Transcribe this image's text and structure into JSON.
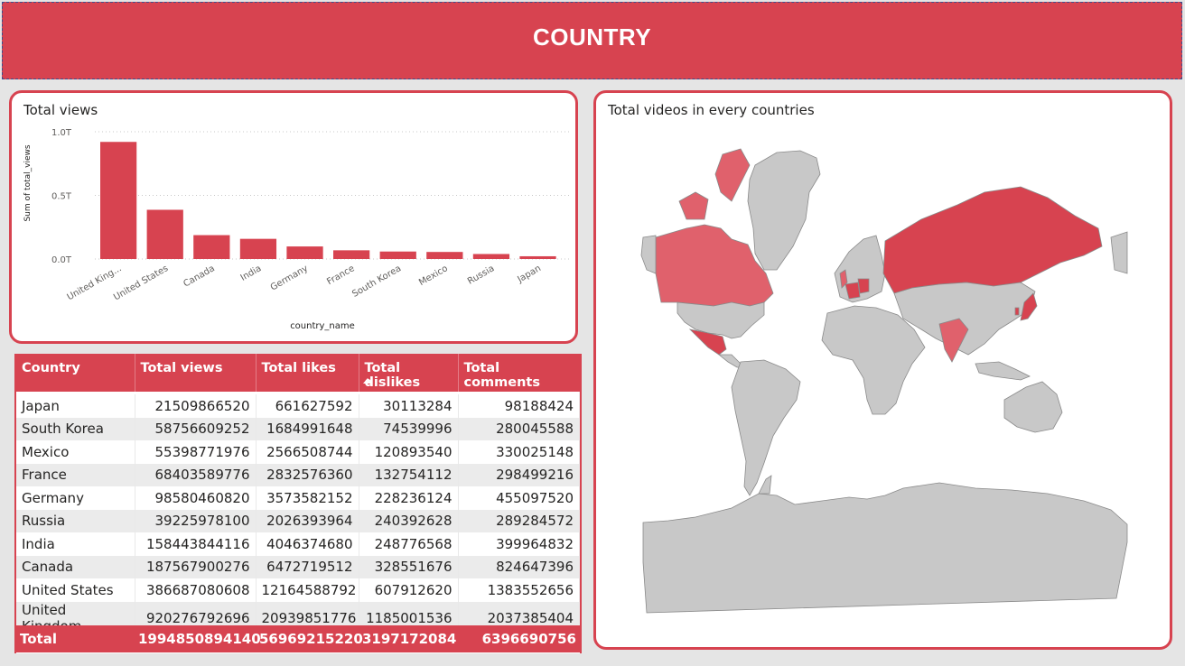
{
  "page": {
    "title": "COUNTRY"
  },
  "bar_chart": {
    "title": "Total views"
  },
  "map": {
    "title": "Total videos in every countries",
    "colors": {
      "land": "#c8c8c8",
      "border": "#8a8a8a",
      "highlight": "#d74350",
      "highlight_light": "#e0616c"
    }
  },
  "colors": {
    "accent": "#d74350",
    "background": "#e5e5e5"
  },
  "chart_data": {
    "type": "bar",
    "title": "Total views",
    "xlabel": "country_name",
    "ylabel": "Sum of total_views",
    "ylim": [
      0,
      1000000000000
    ],
    "yticks": [
      "0.0T",
      "0.5T",
      "1.0T"
    ],
    "grid": true,
    "categories": [
      "United King...",
      "United States",
      "Canada",
      "India",
      "Germany",
      "France",
      "South Korea",
      "Mexico",
      "Russia",
      "Japan"
    ],
    "values": [
      920276792696,
      386687080608,
      187567900276,
      158443844116,
      98580460820,
      68403589776,
      58756609252,
      55398771976,
      39225978100,
      21509866520
    ]
  },
  "table": {
    "headers": [
      "Country",
      "Total views",
      "Total likes",
      "Total dislikes",
      "Total comments"
    ],
    "rows": [
      [
        "Japan",
        "21509866520",
        "661627592",
        "30113284",
        "98188424"
      ],
      [
        "South Korea",
        "58756609252",
        "1684991648",
        "74539996",
        "280045588"
      ],
      [
        "Mexico",
        "55398771976",
        "2566508744",
        "120893540",
        "330025148"
      ],
      [
        "France",
        "68403589776",
        "2832576360",
        "132754112",
        "298499216"
      ],
      [
        "Germany",
        "98580460820",
        "3573582152",
        "228236124",
        "455097520"
      ],
      [
        "Russia",
        "39225978100",
        "2026393964",
        "240392628",
        "289284572"
      ],
      [
        "India",
        "158443844116",
        "4046374680",
        "248776568",
        "399964832"
      ],
      [
        "Canada",
        "187567900276",
        "6472719512",
        "328551676",
        "824647396"
      ],
      [
        "United States",
        "386687080608",
        "12164588792",
        "607912620",
        "1383552656"
      ],
      [
        "United Kingdom",
        "920276792696",
        "20939851776",
        "1185001536",
        "2037385404"
      ]
    ],
    "total": [
      "Total",
      "1994850894140",
      "56969215220",
      "3197172084",
      "6396690756"
    ]
  }
}
